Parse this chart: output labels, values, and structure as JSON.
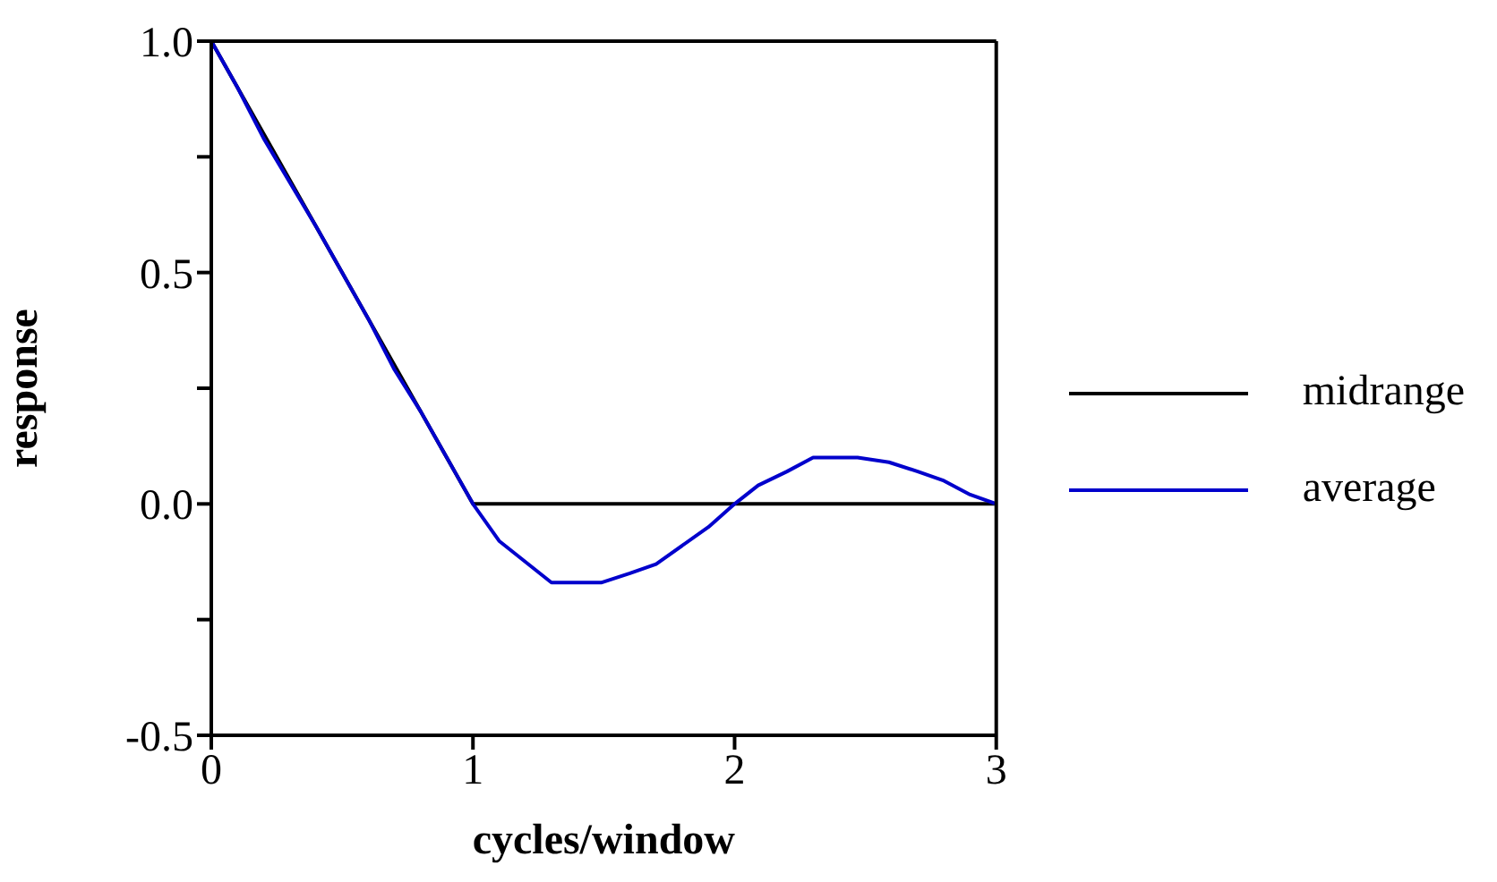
{
  "chart_data": {
    "type": "line",
    "xlabel": "cycles/window",
    "ylabel": "response",
    "xlim": [
      0,
      3
    ],
    "xticks": [
      0,
      1,
      2,
      3
    ],
    "ylim": [
      -0.5,
      1.0
    ],
    "yticks": [
      {
        "value": -0.5,
        "label": "-0.5"
      },
      {
        "value": -0.25,
        "label": null
      },
      {
        "value": 0,
        "label": "0.0"
      },
      {
        "value": 0.25,
        "label": null
      },
      {
        "value": 0.5,
        "label": "0.5"
      },
      {
        "value": 0.75,
        "label": null
      },
      {
        "value": 1.0,
        "label": "1.0"
      }
    ],
    "legend": "right",
    "marker": "none",
    "line_style": "solid",
    "series": [
      {
        "name": "midrange",
        "color": "#000000",
        "x": [
          0,
          1,
          3
        ],
        "values": [
          1,
          0,
          0
        ]
      },
      {
        "name": "average",
        "color": "#0000cc",
        "x": [
          0,
          0.1,
          0.2,
          0.4,
          0.5,
          0.6,
          0.7,
          0.8,
          0.9,
          1,
          1.1,
          1.3,
          1.49,
          1.6,
          1.7,
          1.9,
          2,
          2.09,
          2.2,
          2.3,
          2.47,
          2.59,
          2.7,
          2.8,
          2.9,
          3
        ],
        "values": [
          1,
          0.9,
          0.79,
          0.6,
          0.5,
          0.4,
          0.29,
          0.2,
          0.1,
          0,
          -0.08,
          -0.17,
          -0.17,
          -0.15,
          -0.13,
          -0.05,
          0,
          0.04,
          0.07,
          0.1,
          0.1,
          0.09,
          0.07,
          0.05,
          0.02,
          0
        ]
      }
    ]
  }
}
